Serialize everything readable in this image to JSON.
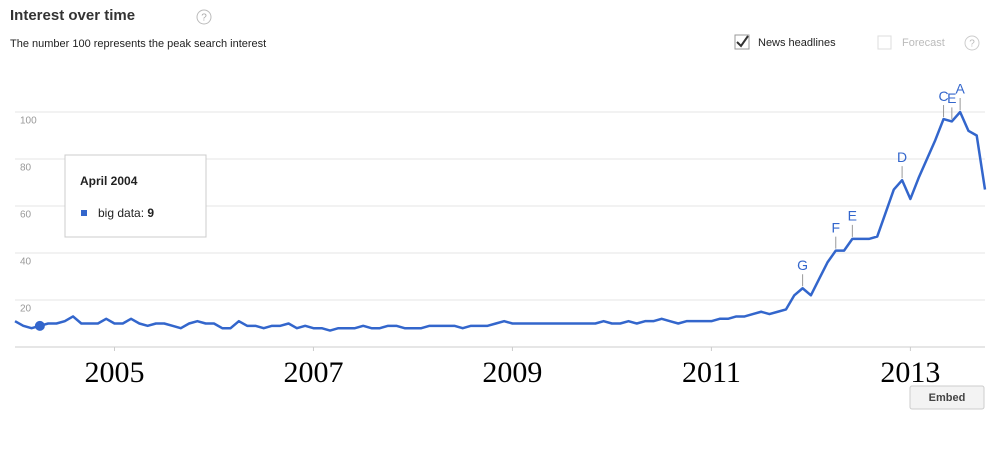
{
  "header": {
    "title": "Interest over time",
    "help": "?",
    "subtitle": "The number 100 represents the peak search interest",
    "news": "News headlines",
    "forecast": "Forecast",
    "embed": "Embed"
  },
  "tooltip": {
    "title": "April 2004"
  },
  "chart_data": {
    "type": "line",
    "x": [
      "2004-01",
      "2004-02",
      "2004-03",
      "2004-04",
      "2004-05",
      "2004-06",
      "2004-07",
      "2004-08",
      "2004-09",
      "2004-10",
      "2004-11",
      "2004-12",
      "2005-01",
      "2005-02",
      "2005-03",
      "2005-04",
      "2005-05",
      "2005-06",
      "2005-07",
      "2005-08",
      "2005-09",
      "2005-10",
      "2005-11",
      "2005-12",
      "2006-01",
      "2006-02",
      "2006-03",
      "2006-04",
      "2006-05",
      "2006-06",
      "2006-07",
      "2006-08",
      "2006-09",
      "2006-10",
      "2006-11",
      "2006-12",
      "2007-01",
      "2007-02",
      "2007-03",
      "2007-04",
      "2007-05",
      "2007-06",
      "2007-07",
      "2007-08",
      "2007-09",
      "2007-10",
      "2007-11",
      "2007-12",
      "2008-01",
      "2008-02",
      "2008-03",
      "2008-04",
      "2008-05",
      "2008-06",
      "2008-07",
      "2008-08",
      "2008-09",
      "2008-10",
      "2008-11",
      "2008-12",
      "2009-01",
      "2009-02",
      "2009-03",
      "2009-04",
      "2009-05",
      "2009-06",
      "2009-07",
      "2009-08",
      "2009-09",
      "2009-10",
      "2009-11",
      "2009-12",
      "2010-01",
      "2010-02",
      "2010-03",
      "2010-04",
      "2010-05",
      "2010-06",
      "2010-07",
      "2010-08",
      "2010-09",
      "2010-10",
      "2010-11",
      "2010-12",
      "2011-01",
      "2011-02",
      "2011-03",
      "2011-04",
      "2011-05",
      "2011-06",
      "2011-07",
      "2011-08",
      "2011-09",
      "2011-10",
      "2011-11",
      "2011-12",
      "2012-01",
      "2012-02",
      "2012-03",
      "2012-04",
      "2012-05",
      "2012-06",
      "2012-07",
      "2012-08",
      "2012-09",
      "2012-10",
      "2012-11",
      "2012-12",
      "2013-01",
      "2013-02",
      "2013-03",
      "2013-04",
      "2013-05",
      "2013-06",
      "2013-07",
      "2013-08",
      "2013-09",
      "2013-10"
    ],
    "series": [
      {
        "name": "big data",
        "color": "#3366cc",
        "values": [
          11,
          9,
          8,
          9,
          10,
          10,
          11,
          13,
          10,
          10,
          10,
          12,
          10,
          10,
          12,
          10,
          9,
          10,
          10,
          9,
          8,
          10,
          11,
          10,
          10,
          8,
          8,
          11,
          9,
          9,
          8,
          9,
          9,
          10,
          8,
          9,
          8,
          8,
          7,
          8,
          8,
          8,
          9,
          8,
          8,
          9,
          9,
          8,
          8,
          8,
          9,
          9,
          9,
          9,
          8,
          9,
          9,
          9,
          10,
          11,
          10,
          10,
          10,
          10,
          10,
          10,
          10,
          10,
          10,
          10,
          10,
          11,
          10,
          10,
          11,
          10,
          11,
          11,
          12,
          11,
          10,
          11,
          11,
          11,
          11,
          12,
          12,
          13,
          13,
          14,
          15,
          14,
          15,
          16,
          22,
          25,
          22,
          29,
          36,
          41,
          41,
          46,
          46,
          46,
          47,
          57,
          67,
          71,
          63,
          72,
          80,
          88,
          97,
          96,
          100,
          92,
          90,
          67
        ]
      }
    ],
    "annotations": [
      {
        "label": "G",
        "x": "2011-12"
      },
      {
        "label": "F",
        "x": "2012-04"
      },
      {
        "label": "E",
        "x": "2012-06"
      },
      {
        "label": "D",
        "x": "2012-12"
      },
      {
        "label": "C",
        "x": "2013-05"
      },
      {
        "label": "E",
        "x": "2013-06"
      },
      {
        "label": "A",
        "x": "2013-07"
      }
    ],
    "xlim": [
      2004,
      2013.75
    ],
    "xticks": [
      2005,
      2007,
      2009,
      2011,
      2013
    ],
    "ylim": [
      0,
      100
    ],
    "yticks": [
      20,
      40,
      60,
      80,
      100
    ],
    "grid": true
  }
}
